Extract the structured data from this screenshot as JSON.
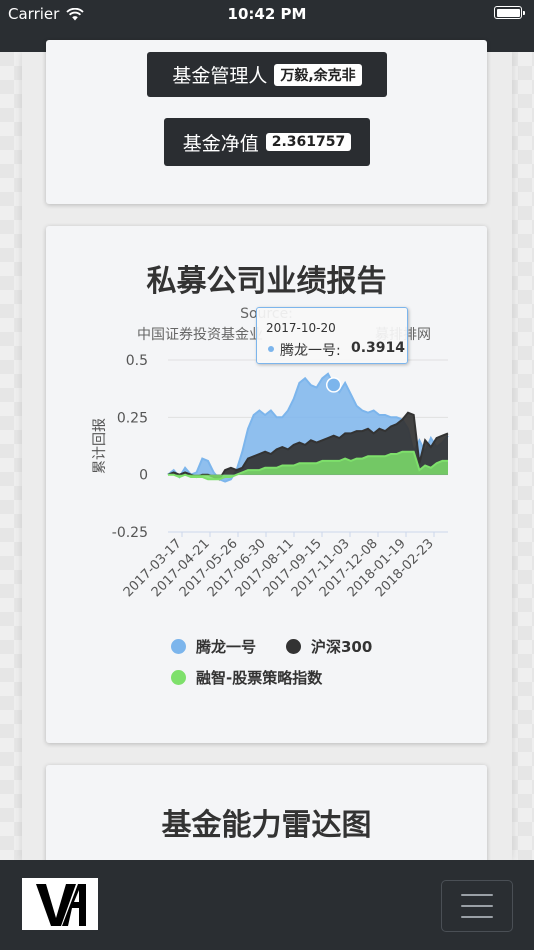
{
  "status_bar": {
    "carrier": "Carrier",
    "time": "10:42 PM"
  },
  "fund_info": {
    "manager_label": "基金管理人",
    "manager_value": "万毅,余克非",
    "nav_label": "基金净值",
    "nav_value": "2.361757"
  },
  "performance": {
    "title": "私募公司业绩报告",
    "source_line": "Source:",
    "subtitle": "中国证券投资基金业",
    "subtitle_tail": "募排排网",
    "tooltip": {
      "date": "2017-10-20",
      "series": "腾龙一号:",
      "value": "0.3914"
    }
  },
  "radar": {
    "title": "基金能力雷达图"
  },
  "colors": {
    "tenglong": "#7cb5ec",
    "hs300": "#333333",
    "rongzhi": "#7ee06b",
    "dark_bar": "#2a2e32"
  },
  "icons": {
    "wifi": "wifi-icon",
    "battery": "battery-icon",
    "menu": "hamburger-menu-icon",
    "logo": "va-logo"
  },
  "chart_data": {
    "type": "area",
    "title": "私募公司业绩报告",
    "ylabel": "累计回报",
    "xlabel": "",
    "ylim": [
      -0.25,
      0.5
    ],
    "y_ticks": [
      "0.5",
      "0.25",
      "0",
      "-0.25"
    ],
    "y_tick_values": [
      0.5,
      0.25,
      0,
      -0.25
    ],
    "x_ticks": [
      "2017-03-17",
      "2017-04-21",
      "2017-05-26",
      "2017-06-30",
      "2017-08-11",
      "2017-09-15",
      "2017-11-03",
      "2017-12-08",
      "2018-01-19",
      "2018-02-23"
    ],
    "grid": true,
    "legend_position": "bottom",
    "series": [
      {
        "name": "腾龙一号",
        "color": "#7cb5ec",
        "values": [
          0.0,
          0.02,
          -0.01,
          0.03,
          0.0,
          0.01,
          0.07,
          0.06,
          0.01,
          -0.02,
          -0.03,
          -0.02,
          0.02,
          0.1,
          0.2,
          0.26,
          0.28,
          0.26,
          0.28,
          0.25,
          0.25,
          0.28,
          0.33,
          0.4,
          0.42,
          0.39,
          0.38,
          0.42,
          0.44,
          0.3914,
          0.36,
          0.4,
          0.35,
          0.3,
          0.28,
          0.27,
          0.28,
          0.26,
          0.26,
          0.25,
          0.25,
          0.24,
          0.2,
          0.1,
          0.15,
          0.1,
          0.16,
          0.12,
          0.14,
          0.17
        ]
      },
      {
        "name": "沪深300",
        "color": "#333333",
        "values": [
          0.0,
          0.01,
          0.0,
          0.01,
          0.0,
          -0.01,
          0.0,
          0.0,
          -0.01,
          -0.02,
          0.02,
          0.03,
          0.02,
          0.03,
          0.07,
          0.08,
          0.09,
          0.1,
          0.09,
          0.11,
          0.12,
          0.11,
          0.13,
          0.14,
          0.13,
          0.15,
          0.14,
          0.15,
          0.16,
          0.17,
          0.16,
          0.18,
          0.18,
          0.19,
          0.19,
          0.2,
          0.18,
          0.2,
          0.19,
          0.21,
          0.22,
          0.24,
          0.27,
          0.26,
          0.05,
          0.15,
          0.12,
          0.16,
          0.17,
          0.18
        ]
      },
      {
        "name": "融智-股票策略指数",
        "color": "#7ee06b",
        "values": [
          0.0,
          0.0,
          -0.01,
          0.0,
          -0.01,
          -0.01,
          -0.01,
          -0.02,
          -0.02,
          -0.02,
          -0.01,
          -0.01,
          0.0,
          0.01,
          0.02,
          0.02,
          0.02,
          0.03,
          0.03,
          0.03,
          0.04,
          0.04,
          0.04,
          0.05,
          0.05,
          0.05,
          0.05,
          0.06,
          0.06,
          0.06,
          0.06,
          0.07,
          0.06,
          0.07,
          0.07,
          0.08,
          0.08,
          0.08,
          0.08,
          0.09,
          0.09,
          0.1,
          0.1,
          0.1,
          0.02,
          0.04,
          0.03,
          0.05,
          0.06,
          0.06
        ]
      }
    ],
    "highlight": {
      "series": "腾龙一号",
      "date": "2017-10-20",
      "value": 0.3914
    }
  }
}
